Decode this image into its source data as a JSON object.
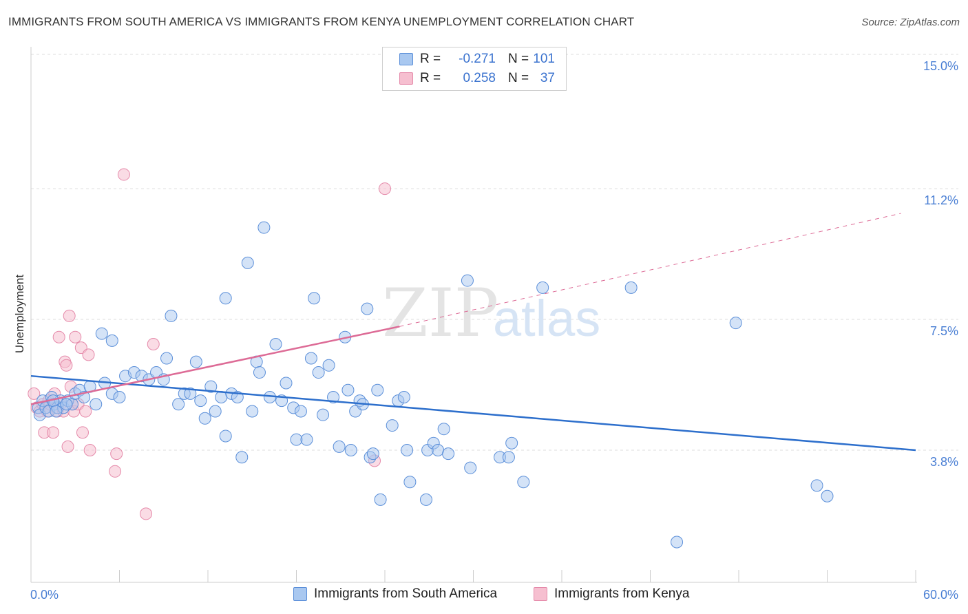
{
  "title": "IMMIGRANTS FROM SOUTH AMERICA VS IMMIGRANTS FROM KENYA UNEMPLOYMENT CORRELATION CHART",
  "source": "Source: ZipAtlas.com",
  "watermark": {
    "part1": "ZIP",
    "part2": "atlas"
  },
  "legend": {
    "rows": [
      {
        "r_key": "R =",
        "r_value": "-0.271",
        "n_key": "N =",
        "n_value": "101"
      },
      {
        "r_key": "R =",
        "r_value": "0.258",
        "n_key": "N =",
        "n_value": "37"
      }
    ]
  },
  "bottom_legend": [
    "Immigrants from South America",
    "Immigrants from Kenya"
  ],
  "colors": {
    "blue_fill": "#a9c8f0",
    "blue_stroke": "#5b8fd9",
    "blue_line": "#2d6fcc",
    "pink_fill": "#f6bfd0",
    "pink_stroke": "#e58aaa",
    "pink_line": "#dd6b96",
    "tick_text": "#4a7fd4",
    "grid": "#dddddd"
  },
  "chart_data": {
    "type": "scatter",
    "title": "IMMIGRANTS FROM SOUTH AMERICA VS IMMIGRANTS FROM KENYA UNEMPLOYMENT CORRELATION CHART",
    "xlabel": "",
    "ylabel": "Unemployment",
    "xlim": [
      0,
      60
    ],
    "ylim": [
      0,
      15.5
    ],
    "x_tick_labels": [
      "0.0%",
      "60.0%"
    ],
    "y_ticks": [
      3.8,
      7.5,
      11.2,
      15.0
    ],
    "y_tick_labels": [
      "3.8%",
      "7.5%",
      "11.2%",
      "15.0%"
    ],
    "grid": "horizontal dashed",
    "legend_position": "top-center",
    "series": [
      {
        "name": "Immigrants from South America",
        "R": -0.271,
        "N": 101,
        "trend": {
          "x": [
            0,
            60
          ],
          "y": [
            5.9,
            3.8
          ]
        },
        "points": [
          [
            0.5,
            5.0
          ],
          [
            0.6,
            4.8
          ],
          [
            0.8,
            5.2
          ],
          [
            1.0,
            5.0
          ],
          [
            1.2,
            4.9
          ],
          [
            1.4,
            5.3
          ],
          [
            1.6,
            5.1
          ],
          [
            1.8,
            5.0
          ],
          [
            2.0,
            5.2
          ],
          [
            2.2,
            5.0
          ],
          [
            2.5,
            5.2
          ],
          [
            2.8,
            5.1
          ],
          [
            3.0,
            5.4
          ],
          [
            3.3,
            5.5
          ],
          [
            3.6,
            5.3
          ],
          [
            4.0,
            5.6
          ],
          [
            4.4,
            5.1
          ],
          [
            5.0,
            5.7
          ],
          [
            5.5,
            5.4
          ],
          [
            6.0,
            5.3
          ],
          [
            6.4,
            5.9
          ],
          [
            7.0,
            6.0
          ],
          [
            7.5,
            5.9
          ],
          [
            8.0,
            5.8
          ],
          [
            8.5,
            6.0
          ],
          [
            9.0,
            5.8
          ],
          [
            9.2,
            6.4
          ],
          [
            9.5,
            7.6
          ],
          [
            10.0,
            5.1
          ],
          [
            10.4,
            5.4
          ],
          [
            10.8,
            5.4
          ],
          [
            11.2,
            6.3
          ],
          [
            11.5,
            5.2
          ],
          [
            11.8,
            4.7
          ],
          [
            12.2,
            5.6
          ],
          [
            12.5,
            4.9
          ],
          [
            12.9,
            5.3
          ],
          [
            13.2,
            4.2
          ],
          [
            13.6,
            5.4
          ],
          [
            14.0,
            5.3
          ],
          [
            13.2,
            8.1
          ],
          [
            14.3,
            3.6
          ],
          [
            14.7,
            9.1
          ],
          [
            15.0,
            4.9
          ],
          [
            15.3,
            6.3
          ],
          [
            15.5,
            6.0
          ],
          [
            15.8,
            10.1
          ],
          [
            16.2,
            5.3
          ],
          [
            16.6,
            6.8
          ],
          [
            17.0,
            5.2
          ],
          [
            17.3,
            5.7
          ],
          [
            17.8,
            5.0
          ],
          [
            18.0,
            4.1
          ],
          [
            18.3,
            4.9
          ],
          [
            18.7,
            4.1
          ],
          [
            19.0,
            6.4
          ],
          [
            19.2,
            8.1
          ],
          [
            19.5,
            6.0
          ],
          [
            19.8,
            4.8
          ],
          [
            20.2,
            6.2
          ],
          [
            20.5,
            5.3
          ],
          [
            20.9,
            3.9
          ],
          [
            21.3,
            7.0
          ],
          [
            21.5,
            5.5
          ],
          [
            21.7,
            3.8
          ],
          [
            22.0,
            4.9
          ],
          [
            22.3,
            5.2
          ],
          [
            22.5,
            5.1
          ],
          [
            22.8,
            7.8
          ],
          [
            23.0,
            3.6
          ],
          [
            23.5,
            5.5
          ],
          [
            23.2,
            3.7
          ],
          [
            23.7,
            2.4
          ],
          [
            24.5,
            4.5
          ],
          [
            24.9,
            5.2
          ],
          [
            25.3,
            5.3
          ],
          [
            25.5,
            3.8
          ],
          [
            25.7,
            2.9
          ],
          [
            26.8,
            2.4
          ],
          [
            26.9,
            3.8
          ],
          [
            27.3,
            4.0
          ],
          [
            27.6,
            3.8
          ],
          [
            28.0,
            4.4
          ],
          [
            28.3,
            3.7
          ],
          [
            29.6,
            8.6
          ],
          [
            29.8,
            3.3
          ],
          [
            31.8,
            3.6
          ],
          [
            32.4,
            3.6
          ],
          [
            32.6,
            4.0
          ],
          [
            33.4,
            2.9
          ],
          [
            34.7,
            8.4
          ],
          [
            40.7,
            8.4
          ],
          [
            43.8,
            1.2
          ],
          [
            47.8,
            7.4
          ],
          [
            53.3,
            2.8
          ],
          [
            54.0,
            2.5
          ],
          [
            1.5,
            5.2
          ],
          [
            2.4,
            5.1
          ],
          [
            4.8,
            7.1
          ],
          [
            5.5,
            6.9
          ],
          [
            1.7,
            4.9
          ]
        ]
      },
      {
        "name": "Immigrants from Kenya",
        "R": 0.258,
        "N": 37,
        "trend": {
          "x": [
            0,
            25
          ],
          "y": [
            5.1,
            7.3
          ],
          "dashed_to": {
            "x": 59,
            "y": 10.5
          }
        },
        "points": [
          [
            0.2,
            5.4
          ],
          [
            0.4,
            5.0
          ],
          [
            0.6,
            4.9
          ],
          [
            0.8,
            5.1
          ],
          [
            0.9,
            4.3
          ],
          [
            1.0,
            5.0
          ],
          [
            1.2,
            5.2
          ],
          [
            1.1,
            4.9
          ],
          [
            1.3,
            5.1
          ],
          [
            1.5,
            4.3
          ],
          [
            1.6,
            5.4
          ],
          [
            1.7,
            5.0
          ],
          [
            1.8,
            4.9
          ],
          [
            1.9,
            7.0
          ],
          [
            2.0,
            5.1
          ],
          [
            2.2,
            4.9
          ],
          [
            2.3,
            6.3
          ],
          [
            2.4,
            6.2
          ],
          [
            2.5,
            3.9
          ],
          [
            2.6,
            7.6
          ],
          [
            2.7,
            5.6
          ],
          [
            2.8,
            5.1
          ],
          [
            2.9,
            4.9
          ],
          [
            3.0,
            7.0
          ],
          [
            3.2,
            5.1
          ],
          [
            3.4,
            6.7
          ],
          [
            3.5,
            4.3
          ],
          [
            3.7,
            4.9
          ],
          [
            3.9,
            6.5
          ],
          [
            4.0,
            3.8
          ],
          [
            5.8,
            3.7
          ],
          [
            5.7,
            3.2
          ],
          [
            6.3,
            11.6
          ],
          [
            7.8,
            2.0
          ],
          [
            8.3,
            6.8
          ],
          [
            24.0,
            11.2
          ],
          [
            23.3,
            3.5
          ]
        ]
      }
    ]
  }
}
